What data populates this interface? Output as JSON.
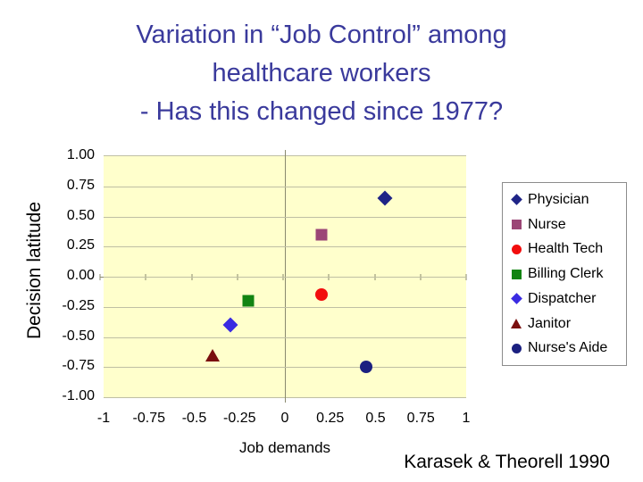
{
  "slide": {
    "title_lines": [
      "Variation in “Job Control” among",
      "healthcare workers",
      "- Has this changed since 1977?"
    ],
    "attribution": "Karasek & Theorell 1990"
  },
  "colors": {
    "title_text": "#3A3A9C",
    "plot_background": "#FFFFCC",
    "gridline": "#BFBFA4",
    "axis_line": "#8A8A6E",
    "legend_border": "#8C8C8C"
  },
  "chart_data": {
    "type": "scatter",
    "xlabel": "Job demands",
    "ylabel": "Decision latitude",
    "xlim": [
      -1,
      1
    ],
    "ylim": [
      -1,
      1
    ],
    "x_ticks": [
      "-1",
      "-0.75",
      "-0.5",
      "-0.25",
      "0",
      "0.25",
      "0.5",
      "0.75",
      "1"
    ],
    "y_ticks": [
      "1.00",
      "0.75",
      "0.50",
      "0.25",
      "0.00",
      "-0.25",
      "-0.50",
      "-0.75",
      "-1.00"
    ],
    "grid": "horizontal gridlines every 0.25; axes cross at origin; pale yellow plot background",
    "legend_position": "right",
    "series": [
      {
        "name": "Physician",
        "x": 0.55,
        "y": 0.65,
        "marker": "diamond",
        "color": "#1F2487"
      },
      {
        "name": "Nurse",
        "x": 0.2,
        "y": 0.35,
        "marker": "square",
        "color": "#9B4676"
      },
      {
        "name": "Health Tech",
        "x": 0.2,
        "y": -0.15,
        "marker": "circle",
        "color": "#F20D0D"
      },
      {
        "name": "Billing Clerk",
        "x": -0.2,
        "y": -0.2,
        "marker": "square",
        "color": "#128412"
      },
      {
        "name": "Dispatcher",
        "x": -0.3,
        "y": -0.4,
        "marker": "diamond",
        "color": "#3A2BE2"
      },
      {
        "name": "Janitor",
        "x": -0.4,
        "y": -0.65,
        "marker": "triangle",
        "color": "#7A0F0F"
      },
      {
        "name": "Nurse's Aide",
        "x": 0.45,
        "y": -0.75,
        "marker": "circle",
        "color": "#1B2080"
      }
    ]
  }
}
